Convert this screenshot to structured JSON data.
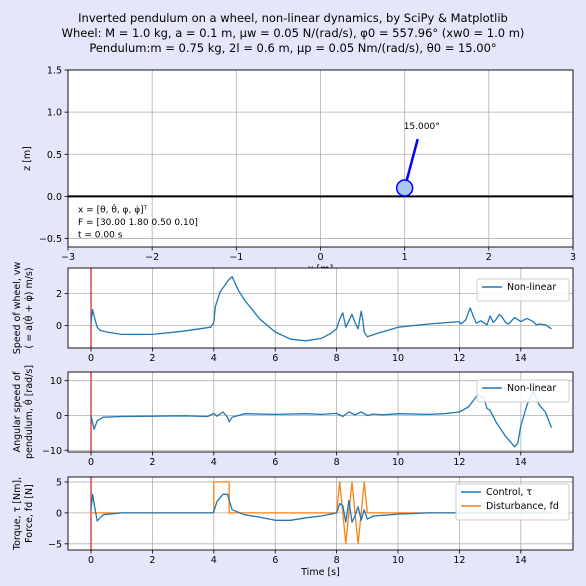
{
  "figure": {
    "title_line1": "Inverted pendulum on a wheel, non-linear dynamics, by SciPy & Matplotlib",
    "title_line2": "Wheel: M = 1.0 kg, a = 0.1 m, μw = 0.05 N/(rad/s), φ0 = 557.96°  (xw0 = 1.0 m)",
    "title_line3": "Pendulum:m = 0.75 kg, 2l = 0.6 m, μp = 0.05 Nm/(rad/s), θ0 = 15.00°",
    "background": "#e6e6fa",
    "line_color": "#1f77b4",
    "disturbance_color": "#ff7f0e",
    "marker_color": "#d62728"
  },
  "chart_data": [
    {
      "type": "scatter",
      "panel": "animation",
      "xlabel": "x [m]",
      "ylabel": "z [m]",
      "xlim": [
        -3,
        3
      ],
      "ylim": [
        -0.6,
        1.5
      ],
      "xticks": [
        "−3",
        "−2",
        "−1",
        "0",
        "1",
        "2",
        "3"
      ],
      "yticks": [
        "−0.5",
        "0.0",
        "0.5",
        "1.0",
        "1.5"
      ],
      "wheel": {
        "x": 1.0,
        "z": 0.1,
        "radius": 0.1
      },
      "pendulum_tip": {
        "x": 1.155,
        "z": 0.68
      },
      "angle_label": "15.000°",
      "state_text": [
        "x = [θ, θ̇, φ, φ̇]ᵀ",
        "F = [30.00  1.80  0.50  0.10]",
        "t = 0.00 s"
      ]
    },
    {
      "type": "line",
      "panel": "wheel-speed",
      "ylabel_line1": "Speed of wheel, vw",
      "ylabel_line2": "( = a(θ̇ + φ̇) m/s)",
      "legend": "Non-linear",
      "xlim": [
        -0.75,
        15.7
      ],
      "ylim": [
        -1.4,
        3.6
      ],
      "xticks": [
        "0",
        "2",
        "4",
        "6",
        "8",
        "10",
        "12",
        "14"
      ],
      "yticks": [
        "0",
        "2"
      ],
      "series": [
        {
          "name": "Non-linear",
          "x": [
            0,
            0.05,
            0.1,
            0.2,
            0.3,
            0.5,
            1,
            2,
            3,
            3.9,
            4.0,
            4.05,
            4.2,
            4.5,
            4.6,
            4.8,
            5,
            5.5,
            6,
            6.5,
            7,
            7.5,
            7.8,
            8.0,
            8.1,
            8.2,
            8.3,
            8.4,
            8.5,
            8.6,
            8.7,
            8.8,
            8.85,
            8.9,
            9.0,
            9.3,
            10,
            11,
            12,
            12.05,
            12.2,
            12.35,
            12.45,
            12.55,
            12.7,
            12.9,
            13.0,
            13.1,
            13.2,
            13.3,
            13.4,
            13.5,
            13.6,
            13.8,
            14.0,
            14.2,
            14.4,
            14.5,
            14.6,
            14.8,
            15.0
          ],
          "y": [
            0.2,
            1.0,
            0.6,
            -0.1,
            -0.3,
            -0.4,
            -0.55,
            -0.55,
            -0.35,
            -0.1,
            0.2,
            1.2,
            2.1,
            2.9,
            3.05,
            2.2,
            1.6,
            0.4,
            -0.4,
            -0.85,
            -0.95,
            -0.8,
            -0.5,
            -0.2,
            0.4,
            0.8,
            -0.1,
            0.3,
            0.7,
            0.2,
            -0.2,
            0.9,
            0.4,
            -0.4,
            -0.7,
            -0.5,
            -0.1,
            0.1,
            0.25,
            0.1,
            0.35,
            1.1,
            0.6,
            0.15,
            0.3,
            0.05,
            0.6,
            0.2,
            0.4,
            0.7,
            0.5,
            0.2,
            0.1,
            0.5,
            0.25,
            0.45,
            0.25,
            0.05,
            0.1,
            0.05,
            -0.2
          ]
        }
      ]
    },
    {
      "type": "line",
      "panel": "pendulum-speed",
      "ylabel_line1": "Angular speed of",
      "ylabel_line2": "pendulum, θ̇ [rad/s]",
      "legend": "Non-linear",
      "xlim": [
        -0.75,
        15.7
      ],
      "ylim": [
        -10.5,
        12.5
      ],
      "xticks": [
        "0",
        "2",
        "4",
        "6",
        "8",
        "10",
        "12",
        "14"
      ],
      "yticks": [
        "−10",
        "0",
        "10"
      ],
      "series": [
        {
          "name": "Non-linear",
          "x": [
            0,
            0.1,
            0.2,
            0.4,
            1,
            2,
            3,
            3.8,
            4.0,
            4.1,
            4.3,
            4.45,
            4.5,
            4.6,
            5,
            6,
            7,
            7.5,
            8.0,
            8.2,
            8.4,
            8.6,
            8.8,
            9.0,
            9.2,
            9.5,
            10,
            11,
            11.5,
            12,
            12.3,
            12.6,
            12.8,
            12.9,
            13.0,
            13.2,
            13.5,
            13.8,
            13.9,
            14.0,
            14.2,
            14.4,
            14.6,
            14.8,
            15.0
          ],
          "y": [
            0,
            -4,
            -1.5,
            -0.5,
            -0.3,
            -0.2,
            -0.1,
            -0.3,
            0.6,
            -0.2,
            1.0,
            -0.5,
            -1.8,
            -0.5,
            0.5,
            0.3,
            0.5,
            0.3,
            0.6,
            -0.3,
            1.0,
            0.2,
            1.0,
            0.0,
            0.4,
            0.2,
            0.5,
            0.3,
            0.5,
            1.0,
            2.5,
            6.0,
            5.0,
            2.0,
            1.5,
            -2.0,
            -6.0,
            -9.0,
            -8.0,
            -3.0,
            3.0,
            7.0,
            3.0,
            1.0,
            -3.5
          ]
        }
      ]
    },
    {
      "type": "line",
      "panel": "torque-force",
      "ylabel_line1": "Torque, τ [Nm],",
      "ylabel_line2": "Force, fd [N]",
      "xlabel": "Time [s]",
      "xlim": [
        -0.75,
        15.7
      ],
      "ylim": [
        -6,
        5.8
      ],
      "xticks": [
        "0",
        "2",
        "4",
        "6",
        "8",
        "10",
        "12",
        "14"
      ],
      "yticks": [
        "−5",
        "0",
        "5"
      ],
      "legend": [
        "Control, τ",
        "Disturbance, fd"
      ],
      "series": [
        {
          "name": "Control, τ",
          "x": [
            0,
            0.05,
            0.1,
            0.2,
            0.4,
            1,
            2,
            3,
            3.95,
            4.0,
            4.1,
            4.3,
            4.45,
            4.5,
            4.6,
            5,
            5.5,
            6,
            6.5,
            7,
            7.5,
            8.0,
            8.1,
            8.2,
            8.3,
            8.4,
            8.5,
            8.6,
            8.7,
            8.8,
            8.9,
            9.0,
            9.2,
            10,
            11,
            12,
            13,
            14,
            15
          ],
          "y": [
            0.5,
            3.0,
            1.5,
            -1.3,
            -0.3,
            0.0,
            0.0,
            0.0,
            0.0,
            0.2,
            1.8,
            3.0,
            3.0,
            2.0,
            0.5,
            -0.3,
            -0.7,
            -1.2,
            -1.2,
            -0.8,
            -0.5,
            0.0,
            1.5,
            1.2,
            -1.5,
            2.0,
            -1.5,
            -0.5,
            1.0,
            -1.2,
            0.5,
            -1.0,
            -0.5,
            -0.2,
            0.0,
            0.0,
            0.0,
            0.0,
            0.0
          ]
        },
        {
          "name": "Disturbance, fd",
          "x": [
            0,
            4.0,
            4.0,
            4.5,
            4.5,
            8.0,
            8.1,
            8.2,
            8.3,
            8.4,
            8.5,
            8.6,
            8.7,
            8.8,
            8.9,
            9.0,
            15.0
          ],
          "y": [
            0,
            0,
            5,
            5,
            0,
            0,
            5,
            0,
            -5,
            0,
            5,
            0,
            -5,
            0,
            5,
            0,
            0
          ]
        }
      ]
    }
  ]
}
